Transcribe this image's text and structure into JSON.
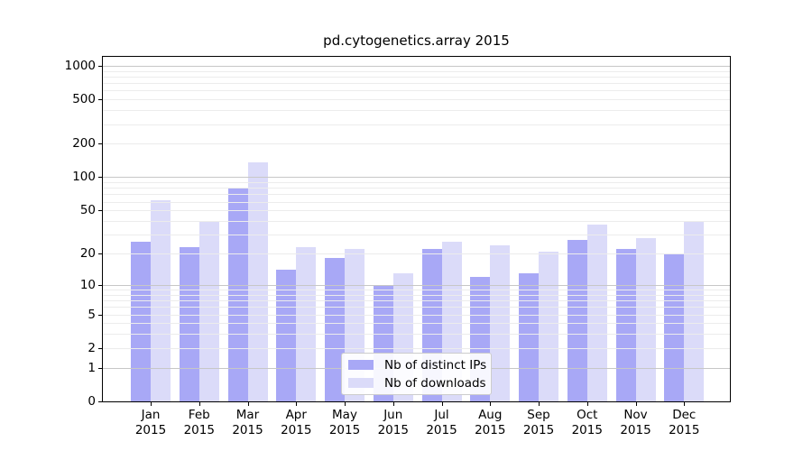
{
  "figure": {
    "title": "pd.cytogenetics.array 2015",
    "background_color": "#ffffff"
  },
  "chart_data": {
    "type": "bar",
    "title": "pd.cytogenetics.array 2015",
    "year_label": "2015",
    "categories": [
      "Jan",
      "Feb",
      "Mar",
      "Apr",
      "May",
      "Jun",
      "Jul",
      "Aug",
      "Sep",
      "Oct",
      "Nov",
      "Dec"
    ],
    "series": [
      {
        "name": "Nb of distinct IPs",
        "color": "#a8a8f6",
        "values": [
          26,
          23,
          80,
          14,
          18,
          10,
          22,
          12,
          13,
          27,
          22,
          20
        ]
      },
      {
        "name": "Nb of downloads",
        "color": "#dbdbf9",
        "values": [
          62,
          39,
          135,
          23,
          22,
          13,
          26,
          24,
          21,
          37,
          28,
          40
        ]
      }
    ],
    "yscale": "log1p",
    "ylim": [
      0,
      1250
    ],
    "yticks": [
      0,
      1,
      2,
      5,
      10,
      20,
      50,
      100,
      200,
      500,
      1000
    ],
    "minor_gridline_values": [
      2,
      3,
      4,
      5,
      6,
      7,
      8,
      9,
      20,
      30,
      40,
      50,
      60,
      70,
      80,
      90,
      200,
      300,
      400,
      500,
      600,
      700,
      800,
      900
    ],
    "major_gridline_values": [
      1,
      10,
      100,
      1000
    ],
    "grid": true,
    "legend_position": "lower-center",
    "colors": {
      "grid_minor": "#ececec",
      "grid_major": "#c7c7c7",
      "axis": "#000000"
    }
  }
}
